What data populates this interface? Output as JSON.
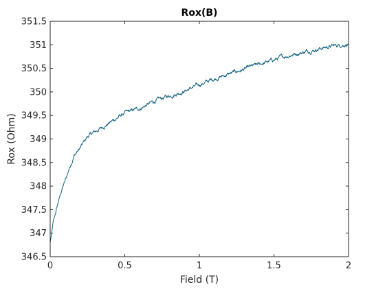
{
  "chart_data": {
    "type": "line",
    "title": "Rox(B)",
    "xlabel": "Field (T)",
    "ylabel": "Rox (Ohm)",
    "xlim": [
      0,
      2
    ],
    "ylim": [
      346.5,
      351.5
    ],
    "xticks": [
      0,
      0.5,
      1,
      1.5,
      2
    ],
    "xtick_labels": [
      "0",
      "0.5",
      "1",
      "1.5",
      "2"
    ],
    "yticks": [
      346.5,
      347,
      347.5,
      348,
      348.5,
      349,
      349.5,
      350,
      350.5,
      351,
      351.5
    ],
    "ytick_labels": [
      "346.5",
      "347",
      "347.5",
      "348",
      "348.5",
      "349",
      "349.5",
      "350",
      "350.5",
      "351",
      "351.5"
    ],
    "grid": false,
    "line_color": "#0b5e7e",
    "series": [
      {
        "x": [
          0,
          0.02,
          0.05,
          0.08,
          0.1,
          0.13,
          0.16,
          0.2,
          0.25,
          0.3,
          0.35,
          0.4,
          0.45,
          0.5,
          0.55,
          0.6,
          0.7,
          0.8,
          0.9,
          1.0,
          1.1,
          1.2,
          1.3,
          1.4,
          1.5,
          1.6,
          1.7,
          1.8,
          1.9,
          2.0
        ],
        "values": [
          346.8,
          347.2,
          347.6,
          347.95,
          348.1,
          348.4,
          348.65,
          348.8,
          349.05,
          349.15,
          349.25,
          349.35,
          349.45,
          349.55,
          349.6,
          349.65,
          349.8,
          349.92,
          350.02,
          350.15,
          350.28,
          350.38,
          350.48,
          350.58,
          350.68,
          350.78,
          350.85,
          350.92,
          350.98,
          351.02
        ]
      }
    ]
  }
}
